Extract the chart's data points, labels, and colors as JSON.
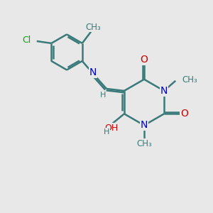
{
  "background_color": "#e8e8e8",
  "bond_color": "#3a7a7a",
  "bond_width": 1.8,
  "atom_colors": {
    "C": "#3a7a7a",
    "N": "#0000cc",
    "O": "#cc0000",
    "Cl": "#00aa00",
    "H": "#3a7a7a"
  },
  "font_size": 9,
  "fig_size": [
    3.0,
    3.0
  ],
  "dpi": 100,
  "xlim": [
    0,
    10
  ],
  "ylim": [
    0,
    10
  ]
}
